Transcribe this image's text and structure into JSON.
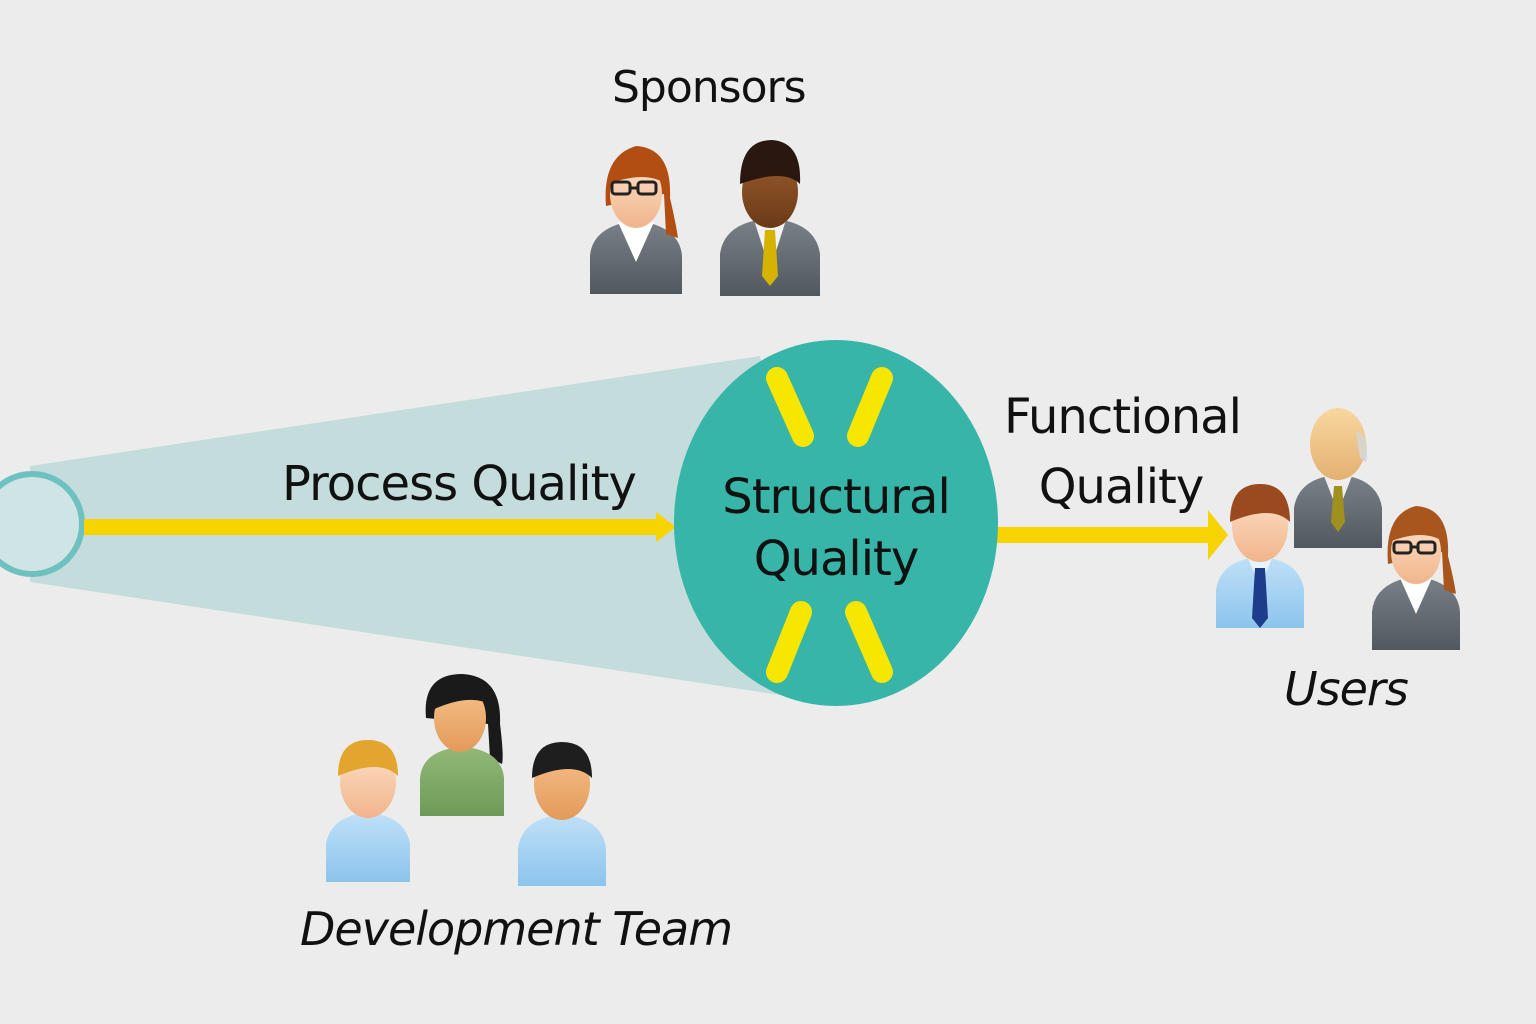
{
  "labels": {
    "sponsors": "Sponsors",
    "process_quality": "Process Quality",
    "structural_line1": "Structural",
    "structural_line2": "Quality",
    "functional_line1": "Functional",
    "functional_line2": "Quality",
    "users": "Users",
    "development_team": "Development Team"
  },
  "colors": {
    "background": "#ececec",
    "cone": "#c4dcdc",
    "cone_edge": "#6ec1c1",
    "circle": "#36b5a8",
    "arrow": "#f7d400",
    "sparks": "#f7e600"
  },
  "icons": {
    "sponsors": [
      "woman-glasses-icon",
      "man-suit-icon"
    ],
    "users": [
      "man-tie-icon",
      "older-man-icon",
      "woman-glasses-icon"
    ],
    "development_team": [
      "man-blond-icon",
      "woman-icon",
      "man-dark-hair-icon"
    ]
  }
}
